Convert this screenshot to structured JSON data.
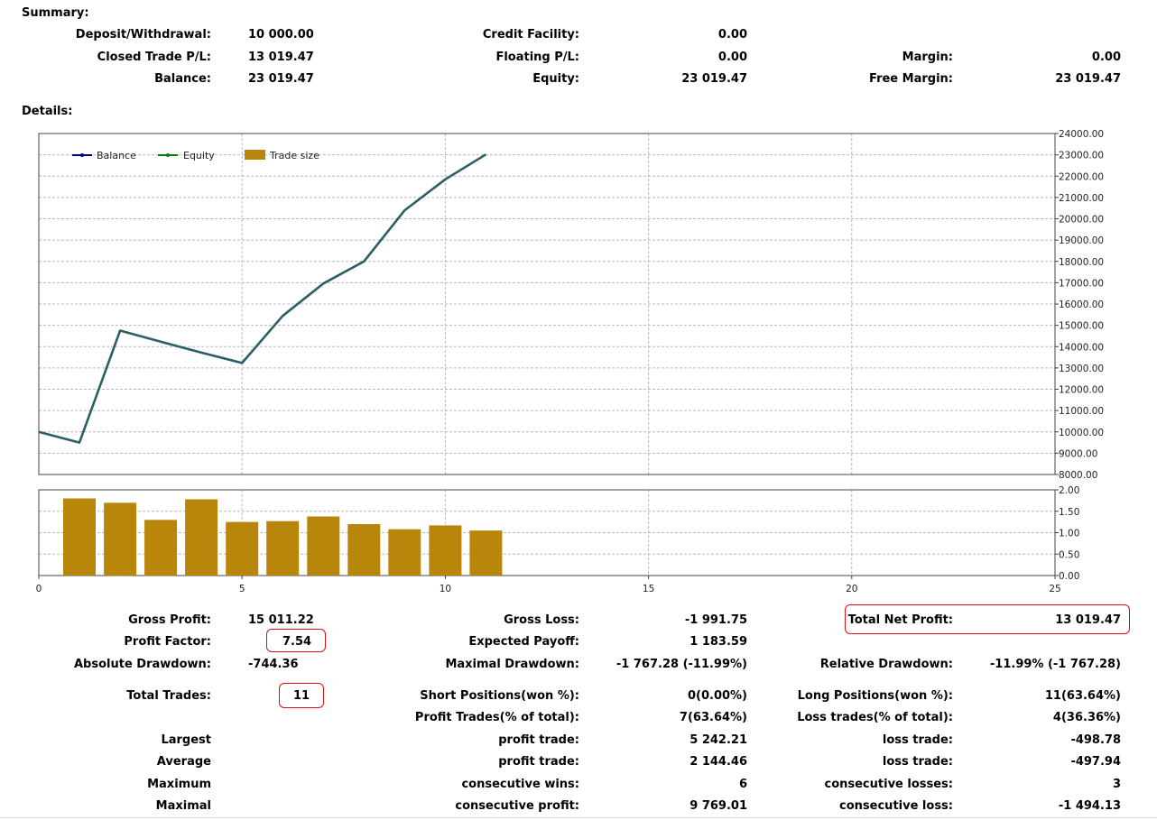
{
  "summary": {
    "title": "Summary:",
    "deposit_label": "Deposit/Withdrawal:",
    "deposit_value": "10 000.00",
    "credit_label": "Credit Facility:",
    "credit_value": "0.00",
    "closed_label": "Closed Trade P/L:",
    "closed_value": "13 019.47",
    "floating_label": "Floating P/L:",
    "floating_value": "0.00",
    "margin_label": "Margin:",
    "margin_value": "0.00",
    "balance_label": "Balance:",
    "balance_value": "23 019.47",
    "equity_label": "Equity:",
    "equity_value": "23 019.47",
    "free_margin_label": "Free Margin:",
    "free_margin_value": "23 019.47"
  },
  "details": {
    "title": "Details:"
  },
  "chart_data": [
    {
      "type": "line",
      "legend": [
        "Balance",
        "Equity",
        "Trade size"
      ],
      "legend_placement": "top-left",
      "series_colors": {
        "Balance": "#00008b",
        "Equity": "#008000",
        "combined_line": "#2a5f66",
        "Trade size": "#b8860b"
      },
      "x": [
        0,
        1,
        2,
        3,
        4,
        5,
        6,
        7,
        8,
        9,
        10,
        11
      ],
      "y": [
        10000,
        9500,
        14750,
        14230,
        13720,
        13230,
        15440,
        16960,
        18000,
        20400,
        21850,
        23019.47
      ],
      "xlim": [
        0,
        25
      ],
      "ylim": [
        8000,
        24000
      ],
      "y_ticks": [
        "8000.00",
        "9000.00",
        "10000.00",
        "11000.00",
        "12000.00",
        "13000.00",
        "14000.00",
        "15000.00",
        "16000.00",
        "17000.00",
        "18000.00",
        "19000.00",
        "20000.00",
        "21000.00",
        "22000.00",
        "23000.00",
        "24000.00"
      ],
      "grid": true
    },
    {
      "type": "bar",
      "x": [
        1,
        2,
        3,
        4,
        5,
        6,
        7,
        8,
        9,
        10,
        11
      ],
      "values": [
        1.8,
        1.7,
        1.3,
        1.78,
        1.25,
        1.27,
        1.38,
        1.2,
        1.08,
        1.17,
        1.05
      ],
      "xlim": [
        0,
        25
      ],
      "ylim": [
        0,
        2
      ],
      "y_ticks": [
        "0.00",
        "0.50",
        "1.00",
        "1.50",
        "2.00"
      ],
      "x_ticks": [
        "0",
        "5",
        "10",
        "15",
        "20",
        "25"
      ],
      "grid": true
    }
  ],
  "stats": {
    "gross_profit_label": "Gross Profit:",
    "gross_profit_value": "15 011.22",
    "gross_loss_label": "Gross Loss:",
    "gross_loss_value": "-1 991.75",
    "total_net_label": "Total Net Profit:",
    "total_net_value": "13 019.47",
    "profit_factor_label": "Profit Factor:",
    "profit_factor_value": "7.54",
    "expected_payoff_label": "Expected Payoff:",
    "expected_payoff_value": "1 183.59",
    "abs_dd_label": "Absolute Drawdown:",
    "abs_dd_value": "-744.36",
    "max_dd_label": "Maximal Drawdown:",
    "max_dd_value": "-1 767.28 (-11.99%)",
    "rel_dd_label": "Relative Drawdown:",
    "rel_dd_value": "-11.99% (-1 767.28)",
    "total_trades_label": "Total Trades:",
    "total_trades_value": "11",
    "short_label": "Short Positions(won %):",
    "short_value": "0(0.00%)",
    "long_label": "Long Positions(won %):",
    "long_value": "11(63.64%)",
    "profit_trades_label": "Profit Trades(% of total):",
    "profit_trades_value": "7(63.64%)",
    "loss_trades_label": "Loss trades(% of total):",
    "loss_trades_value": "4(36.36%)",
    "largest_label": "Largest",
    "largest_profit_label": "profit trade:",
    "largest_profit_value": "5 242.21",
    "largest_loss_label": "loss trade:",
    "largest_loss_value": "-498.78",
    "average_label": "Average",
    "average_profit_label": "profit trade:",
    "average_profit_value": "2 144.46",
    "average_loss_label": "loss trade:",
    "average_loss_value": "-497.94",
    "maximum_label": "Maximum",
    "cons_wins_label": "consecutive wins:",
    "cons_wins_value": "6",
    "cons_losses_label": "consecutive losses:",
    "cons_losses_value": "3",
    "maximal_label": "Maximal",
    "cons_profit_label": "consecutive profit:",
    "cons_profit_value": "9 769.01",
    "cons_loss_label": "consecutive loss:",
    "cons_loss_value": "-1 494.13"
  }
}
